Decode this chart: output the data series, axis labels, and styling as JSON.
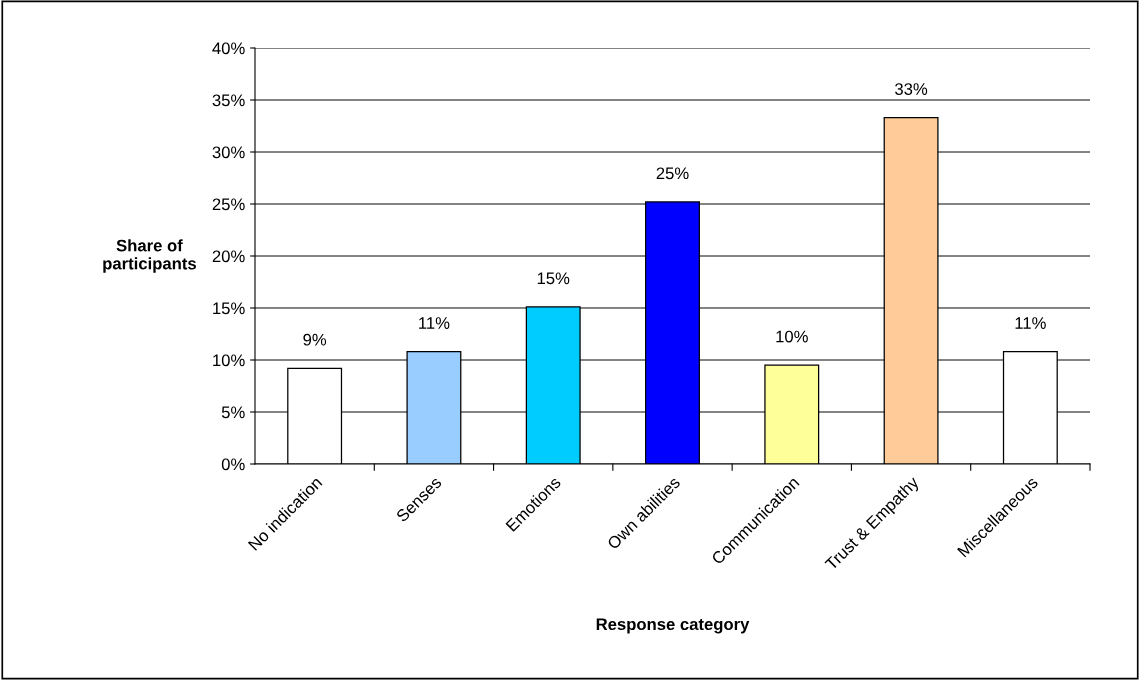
{
  "chart_data": {
    "type": "bar",
    "xlabel": "Response category",
    "ylabel": "Share of\nparticipants",
    "categories": [
      "No indication",
      "Senses",
      "Emotions",
      "Own abilities",
      "Communication",
      "Trust & Empathy",
      "Miscellaneous"
    ],
    "values": [
      9.2,
      10.8,
      15.1,
      25.2,
      9.5,
      33.3,
      10.8
    ],
    "value_labels": [
      "9%",
      "11%",
      "15%",
      "25%",
      "10%",
      "33%",
      "11%"
    ],
    "colors": [
      "#ffffff",
      "#99ccff",
      "#00ccff",
      "#0000ff",
      "#ffff99",
      "#ffcc99",
      "#ffffff"
    ],
    "ylim": [
      0,
      40
    ],
    "yticks": [
      {
        "value": 0,
        "label": "0%"
      },
      {
        "value": 5,
        "label": "5%"
      },
      {
        "value": 10,
        "label": "10%"
      },
      {
        "value": 15,
        "label": "15%"
      },
      {
        "value": 20,
        "label": "20%"
      },
      {
        "value": 25,
        "label": "25%"
      },
      {
        "value": 30,
        "label": "30%"
      },
      {
        "value": 35,
        "label": "35%"
      },
      {
        "value": 40,
        "label": "40%"
      }
    ],
    "grid": "y",
    "legend": false
  }
}
